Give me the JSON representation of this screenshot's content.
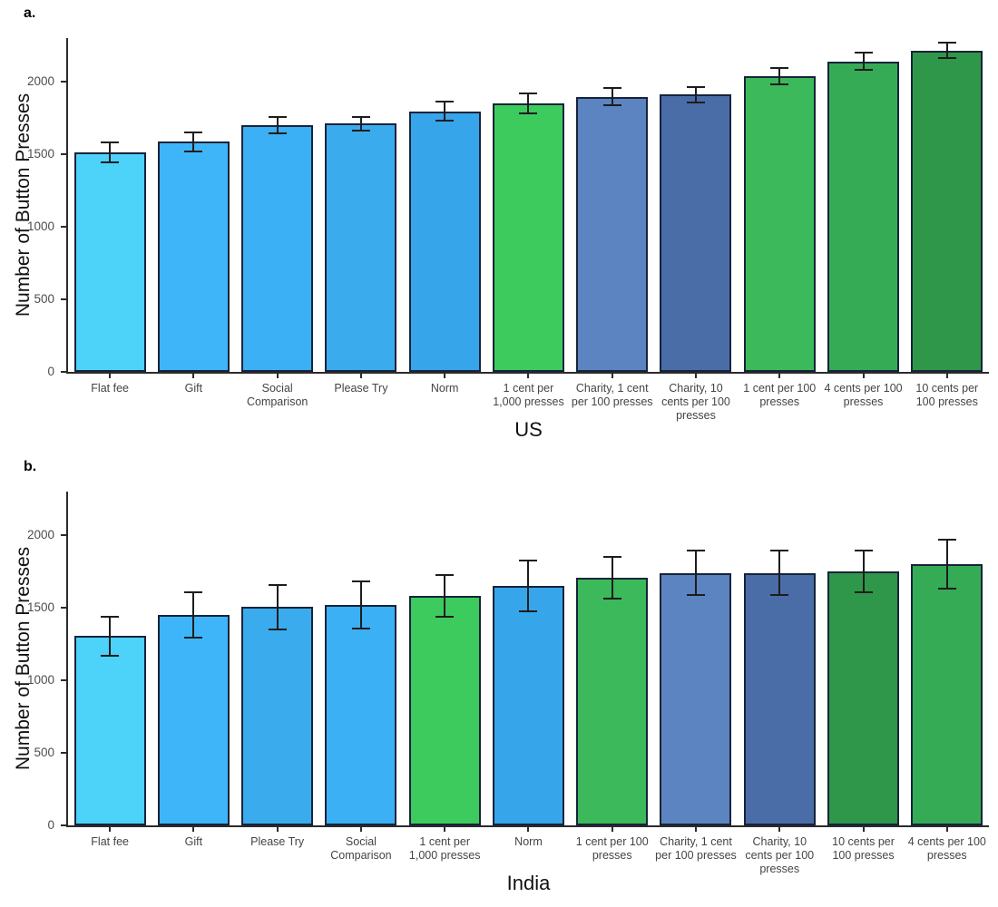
{
  "appearance": {
    "background": "#ffffff",
    "bar_outline": "#17233a",
    "error_bar_color": "#1d1d1d",
    "axis_color": "#2b2b2b",
    "tick_label_color": "#4d4d4d",
    "category_label_color": "#444444"
  },
  "chart_data": [
    {
      "type": "bar",
      "panel_label": "a.",
      "xlabel": "US",
      "ylabel": "Number of Button Presses",
      "ylim": [
        0,
        2300
      ],
      "yticks": [
        0,
        500,
        1000,
        1500,
        2000
      ],
      "grid": false,
      "legend": "none",
      "error_bars": true,
      "categories": [
        "Flat fee",
        "Gift",
        "Social Comparison",
        "Please Try",
        "Norm",
        "1 cent per 1,000 presses",
        "Charity, 1 cent per 100 presses",
        "Charity, 10 cents per 100 presses",
        "1 cent per 100 presses",
        "4 cents per 100 presses",
        "10 cents per 100 presses"
      ],
      "values": [
        1510,
        1585,
        1700,
        1710,
        1795,
        1850,
        1895,
        1910,
        2040,
        2140,
        2215
      ],
      "errors": [
        75,
        73,
        65,
        55,
        73,
        73,
        65,
        60,
        62,
        64,
        60
      ],
      "colors": [
        "#4dd2fa",
        "#3fb5f9",
        "#3cb0f4",
        "#3aaced",
        "#37a5ea",
        "#3ecb5e",
        "#5c84c0",
        "#4a6da7",
        "#3cb95a",
        "#35ab55",
        "#2f9749"
      ]
    },
    {
      "type": "bar",
      "panel_label": "b.",
      "xlabel": "India",
      "ylabel": "Number of Button Presses",
      "ylim": [
        0,
        2300
      ],
      "yticks": [
        0,
        500,
        1000,
        1500,
        2000
      ],
      "grid": false,
      "legend": "none",
      "error_bars": true,
      "categories": [
        "Flat fee",
        "Gift",
        "Please Try",
        "Social Comparison",
        "1 cent per 1,000 presses",
        "Norm",
        "1 cent per 100 presses",
        "Charity, 1 cent per 100 presses",
        "Charity, 10 cents per 100 presses",
        "10 cents per 100 presses",
        "4 cents per 100 presses"
      ],
      "values": [
        1305,
        1450,
        1505,
        1520,
        1580,
        1650,
        1705,
        1740,
        1740,
        1750,
        1800
      ],
      "errors": [
        140,
        165,
        160,
        170,
        150,
        180,
        150,
        160,
        160,
        150,
        175
      ],
      "colors": [
        "#4dd2fa",
        "#3fb5f9",
        "#3aaced",
        "#3cb0f4",
        "#3ecb5e",
        "#37a5ea",
        "#3cb95a",
        "#5c84c0",
        "#4a6da7",
        "#2f9749",
        "#35ab55"
      ]
    }
  ]
}
